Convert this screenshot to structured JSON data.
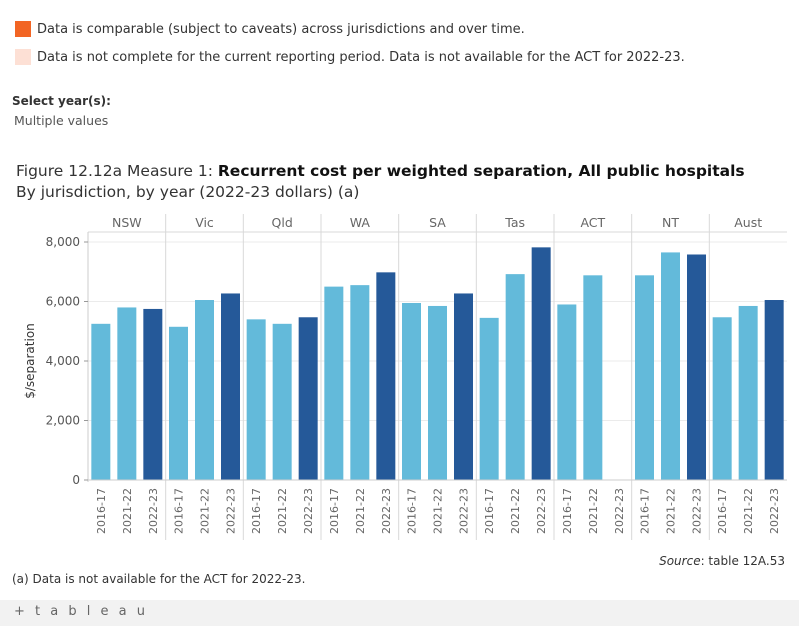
{
  "legend": {
    "items": [
      {
        "label": "Data is comparable (subject to caveats) across jurisdictions and over time.",
        "color": "#f26524"
      },
      {
        "label": "Data is not complete for the current reporting period. Data is not available for the ACT for 2022-23.",
        "color": "#fde0d5"
      }
    ]
  },
  "filter": {
    "label": "Select year(s):",
    "value": "Multiple values"
  },
  "figure": {
    "prefix": "Figure 12.12a Measure 1: ",
    "title": "Recurrent cost per weighted separation, All public hospitals",
    "subtitle": "By jurisdiction, by year (2022-23 dollars) (a)"
  },
  "source": {
    "label": "Source",
    "text": ": table 12A.53"
  },
  "footnote": "(a) Data is not available for the ACT for 2022-23.",
  "footer": {
    "logo": "+ t a b l e a u"
  },
  "colors": {
    "light_bar": "#63bada",
    "dark_bar": "#255999",
    "grid": "#ebebeb",
    "divider": "#d9d9d9"
  },
  "chart_data": {
    "type": "bar",
    "ylabel": "$/separation",
    "ylim": [
      0,
      8000
    ],
    "yticks": [
      0,
      2000,
      4000,
      6000,
      8000
    ],
    "ytick_labels": [
      "0",
      "2,000",
      "4,000",
      "6,000",
      "8,000"
    ],
    "grid": true,
    "years": [
      "2016-17",
      "2021-22",
      "2022-23"
    ],
    "groups": [
      {
        "name": "NSW",
        "values": [
          5250,
          5800,
          5750
        ]
      },
      {
        "name": "Vic",
        "values": [
          5150,
          6050,
          6270
        ]
      },
      {
        "name": "Qld",
        "values": [
          5400,
          5250,
          5470
        ]
      },
      {
        "name": "WA",
        "values": [
          6500,
          6550,
          6980
        ]
      },
      {
        "name": "SA",
        "values": [
          5950,
          5850,
          6270
        ]
      },
      {
        "name": "Tas",
        "values": [
          5450,
          6920,
          7820
        ]
      },
      {
        "name": "ACT",
        "values": [
          5900,
          6880,
          null
        ]
      },
      {
        "name": "NT",
        "values": [
          6880,
          7650,
          7580
        ]
      },
      {
        "name": "Aust",
        "values": [
          5470,
          5850,
          6050
        ]
      }
    ]
  }
}
